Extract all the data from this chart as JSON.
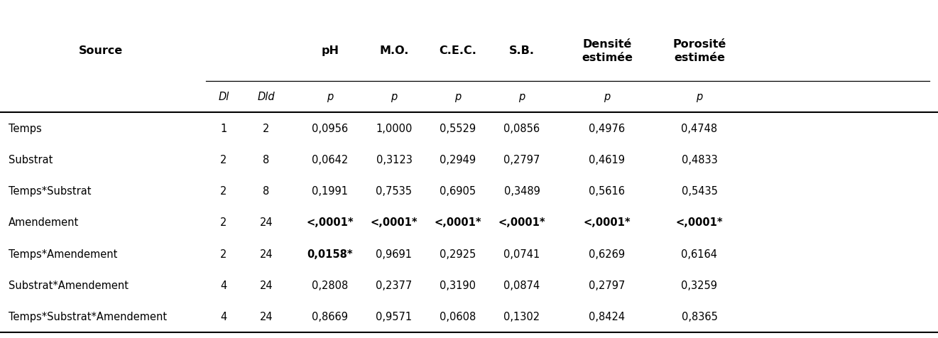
{
  "source_label": "Source",
  "top_headers": [
    "pH",
    "M.O.",
    "C.E.C.",
    "S.B.",
    "Densité\nestimée",
    "Porosité\nestimée"
  ],
  "sub_headers_left": [
    "Dl",
    "Dld"
  ],
  "sub_headers_p": [
    "p",
    "p",
    "p",
    "p",
    "p",
    "p"
  ],
  "rows": [
    {
      "source": "Temps",
      "dl": "1",
      "dld": "2",
      "vals": [
        "0,0956",
        "1,0000",
        "0,5529",
        "0,0856",
        "0,4976",
        "0,4748"
      ],
      "bold": []
    },
    {
      "source": "Substrat",
      "dl": "2",
      "dld": "8",
      "vals": [
        "0,0642",
        "0,3123",
        "0,2949",
        "0,2797",
        "0,4619",
        "0,4833"
      ],
      "bold": []
    },
    {
      "source": "Temps*Substrat",
      "dl": "2",
      "dld": "8",
      "vals": [
        "0,1991",
        "0,7535",
        "0,6905",
        "0,3489",
        "0,5616",
        "0,5435"
      ],
      "bold": []
    },
    {
      "source": "Amendement",
      "dl": "2",
      "dld": "24",
      "vals": [
        "<,0001*",
        "<,0001*",
        "<,0001*",
        "<,0001*",
        "<,0001*",
        "<,0001*"
      ],
      "bold": [
        0,
        1,
        2,
        3,
        4,
        5
      ]
    },
    {
      "source": "Temps*Amendement",
      "dl": "2",
      "dld": "24",
      "vals": [
        "0,0158*",
        "0,9691",
        "0,2925",
        "0,0741",
        "0,6269",
        "0,6164"
      ],
      "bold": [
        0
      ]
    },
    {
      "source": "Substrat*Amendement",
      "dl": "4",
      "dld": "24",
      "vals": [
        "0,2808",
        "0,2377",
        "0,3190",
        "0,0874",
        "0,2797",
        "0,3259"
      ],
      "bold": []
    },
    {
      "source": "Temps*Substrat*Amendement",
      "dl": "4",
      "dld": "24",
      "vals": [
        "0,8669",
        "0,9571",
        "0,0608",
        "0,1302",
        "0,8424",
        "0,8365"
      ],
      "bold": []
    }
  ],
  "background_color": "#ffffff",
  "text_color": "#000000",
  "font_size": 10.5,
  "header_font_size": 11.5
}
